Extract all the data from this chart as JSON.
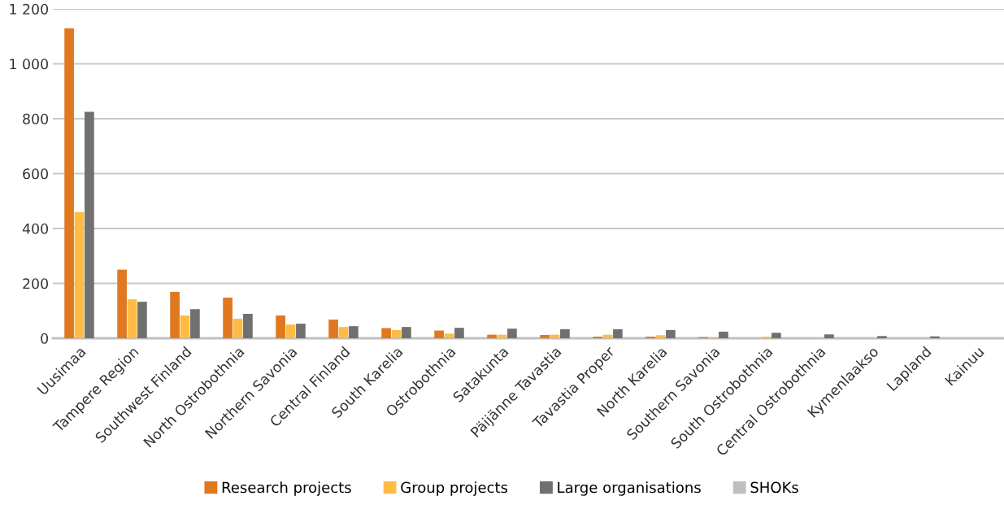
{
  "chart_data": {
    "type": "bar",
    "categories": [
      "Uusimaa",
      "Tampere Region",
      "Southwest Finland",
      "North Ostrobothnia",
      "Northern Savonia",
      "Central Finland",
      "South Karelia",
      "Ostrobothnia",
      "Satakunta",
      "Päijänne Tavastia",
      "Tavastia Proper",
      "North Karelia",
      "Southern Savonia",
      "South Ostrobothnia",
      "Central Ostrobothnia",
      "Kymenlaakso",
      "Lapland",
      "Kainuu"
    ],
    "series": [
      {
        "name": "Research projects",
        "color": "#e07820",
        "values": [
          1130,
          250,
          169,
          148,
          83,
          68,
          37,
          28,
          13,
          12,
          6,
          6,
          4,
          null,
          null,
          null,
          null,
          null
        ]
      },
      {
        "name": "Group projects",
        "color": "#ffbb44",
        "values": [
          460,
          142,
          83,
          71,
          50,
          41,
          30,
          17,
          13,
          13,
          13,
          11,
          4,
          6,
          null,
          null,
          null,
          null
        ]
      },
      {
        "name": "Large organisations",
        "color": "#707070",
        "values": [
          825,
          133,
          106,
          89,
          53,
          44,
          41,
          38,
          35,
          33,
          33,
          30,
          24,
          20,
          14,
          8,
          7,
          null
        ]
      },
      {
        "name": "SHOKs",
        "color": "#bfbfbf",
        "values": [
          null,
          null,
          null,
          null,
          null,
          null,
          null,
          null,
          null,
          null,
          null,
          null,
          null,
          null,
          null,
          null,
          null,
          null
        ]
      }
    ],
    "ylim": [
      0,
      1200
    ],
    "yticks": [
      0,
      200,
      400,
      600,
      800,
      {
        "value": 1000,
        "label": "1 000"
      },
      {
        "value": 1200,
        "label": "1 200"
      }
    ],
    "grid": "y",
    "legend": "bottom"
  }
}
